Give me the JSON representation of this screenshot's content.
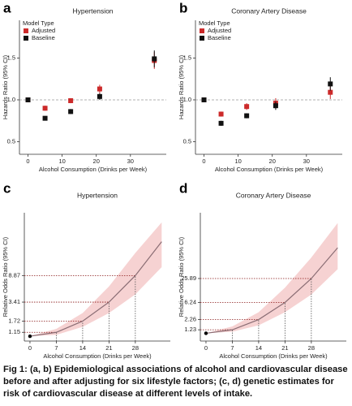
{
  "chart_data": [
    {
      "type": "scatter",
      "panel_label": "a",
      "title": "Hypertension",
      "x_label": "Alcohol Consumption (Drinks per Week)",
      "y_label": "Hazards Ratio (95% CI)",
      "legend_title": "Model Type",
      "legend": "top-left",
      "x": [
        0,
        5,
        12.5,
        21,
        37
      ],
      "series": [
        {
          "name": "Adjusted",
          "color": "#cc2a2a",
          "values": [
            1.0,
            0.9,
            0.99,
            1.13,
            1.47
          ],
          "errors": [
            0.01,
            0.03,
            0.03,
            0.05,
            0.1
          ]
        },
        {
          "name": "Baseline",
          "color": "#111111",
          "values": [
            1.0,
            0.78,
            0.86,
            1.04,
            1.49
          ],
          "errors": [
            0.01,
            0.02,
            0.03,
            0.04,
            0.1
          ]
        }
      ],
      "xlim": [
        -2.5,
        40.5
      ],
      "xticks": [
        0,
        10,
        20,
        30
      ],
      "ylim": [
        0.35,
        1.95
      ],
      "yticks": [
        0.5,
        {
          "value": 1,
          "label": "1.0"
        },
        1.5
      ],
      "refline": 1
    },
    {
      "type": "scatter",
      "panel_label": "b",
      "title": "Coronary Artery Disease",
      "x_label": "Alcohol Consumption (Drinks per Week)",
      "y_label": "Hazards Ratio (95% CI)",
      "legend_title": "Model Type",
      "legend": "top-left",
      "x": [
        0,
        5,
        12.5,
        21,
        37
      ],
      "series": [
        {
          "name": "Adjusted",
          "color": "#cc2a2a",
          "values": [
            1.0,
            0.83,
            0.92,
            0.96,
            1.09
          ],
          "errors": [
            0.01,
            0.03,
            0.04,
            0.06,
            0.08
          ]
        },
        {
          "name": "Baseline",
          "color": "#111111",
          "values": [
            1.0,
            0.72,
            0.81,
            0.93,
            1.19
          ],
          "errors": [
            0.01,
            0.03,
            0.03,
            0.05,
            0.08
          ]
        }
      ],
      "xlim": [
        -2.5,
        40.5
      ],
      "xticks": [
        0,
        10,
        20,
        30
      ],
      "ylim": [
        0.35,
        1.95
      ],
      "yticks": [
        0.5,
        {
          "value": 1,
          "label": "1.0"
        },
        1.5
      ],
      "refline": 1
    },
    {
      "type": "line",
      "panel_label": "c",
      "title": "Hypertension",
      "x_label": "Alcohol Consumption (Drinks per Week)",
      "y_label": "Relative Odds Ratio (95% CI)",
      "x": [
        0,
        7,
        14,
        21,
        28,
        35
      ],
      "values": [
        1,
        1.15,
        1.72,
        3.41,
        8.87,
        30
      ],
      "lower": [
        1,
        1.05,
        1.4,
        2.3,
        4.5,
        12
      ],
      "upper": [
        1,
        1.3,
        2.3,
        6,
        20,
        60
      ],
      "color": "#8a6d74",
      "band_color": "#f6d2d2",
      "xlim": [
        -1.5,
        37.3
      ],
      "xticks": [
        0,
        7,
        14,
        21,
        28
      ],
      "ylim": [
        0.84,
        85
      ],
      "ylog": true,
      "yticks": [
        1.15,
        1.72,
        3.41,
        8.87
      ]
    },
    {
      "type": "line",
      "panel_label": "d",
      "title": "Coronary Artery Disease",
      "x_label": "Alcohol Consumption (Drinks per Week)",
      "y_label": "Relative Odds Ratio (95% CI)",
      "x": [
        0,
        7,
        14,
        21,
        28,
        35
      ],
      "values": [
        1,
        1.23,
        2.26,
        6.24,
        25.89,
        161
      ],
      "lower": [
        1,
        1.1,
        1.6,
        3.5,
        10,
        45
      ],
      "upper": [
        1,
        1.5,
        3.5,
        15,
        90,
        700
      ],
      "color": "#8a6d74",
      "band_color": "#f6d2d2",
      "xlim": [
        -1.5,
        37.3
      ],
      "xticks": [
        0,
        7,
        14,
        21,
        28
      ],
      "ylim": [
        0.63,
        1290
      ],
      "ylog": true,
      "yticks": [
        1.23,
        2.26,
        6.24,
        25.89
      ]
    }
  ],
  "caption": "Fig 1: (a, b) Epidemiological associations of alcohol and cardiovascular disease before and after adjusting for six lifestyle factors; (c, d) genetic estimates for risk of cardiovascular disease at different levels of intake."
}
